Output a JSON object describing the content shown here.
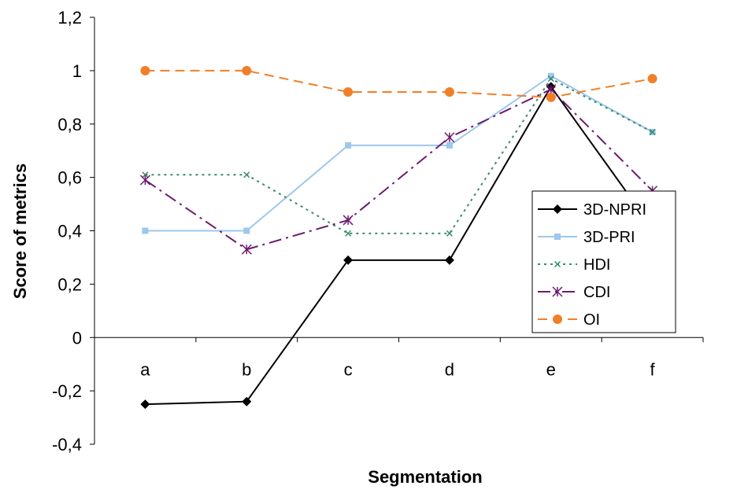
{
  "chart_data": {
    "type": "line",
    "title": "",
    "xlabel": "Segmentation",
    "ylabel": "Score of metrics",
    "categories": [
      "a",
      "b",
      "c",
      "d",
      "e",
      "f"
    ],
    "ylim": [
      -0.4,
      1.2
    ],
    "yticks": [
      "1,2",
      "1",
      "0,8",
      "0,6",
      "0,4",
      "0,2",
      "0",
      "-0,2",
      "-0,4"
    ],
    "ytick_values": [
      1.2,
      1.0,
      0.8,
      0.6,
      0.4,
      0.2,
      0.0,
      -0.2,
      -0.4
    ],
    "grid": false,
    "legend_position": "right",
    "series": [
      {
        "name": "3D-NPRI",
        "values": [
          -0.25,
          -0.24,
          0.29,
          0.29,
          0.94,
          0.41
        ],
        "color": "#000000",
        "dash": "",
        "marker": "diamond",
        "width": 2
      },
      {
        "name": "3D-PRI",
        "values": [
          0.4,
          0.4,
          0.72,
          0.72,
          0.98,
          0.77
        ],
        "color": "#9cc8ec",
        "dash": "",
        "marker": "square",
        "width": 2
      },
      {
        "name": "HDI",
        "values": [
          0.61,
          0.61,
          0.39,
          0.39,
          0.97,
          0.77
        ],
        "color": "#3a8a6a",
        "dash": "3,5",
        "marker": "x",
        "width": 2
      },
      {
        "name": "CDI",
        "values": [
          0.59,
          0.33,
          0.44,
          0.75,
          0.93,
          0.55
        ],
        "color": "#6e1a6e",
        "dash": "16,6,3,6",
        "marker": "star",
        "width": 2
      },
      {
        "name": "OI",
        "values": [
          1.0,
          1.0,
          0.92,
          0.92,
          0.9,
          0.97
        ],
        "color": "#f07f29",
        "dash": "12,7",
        "marker": "circle",
        "width": 2
      }
    ]
  }
}
